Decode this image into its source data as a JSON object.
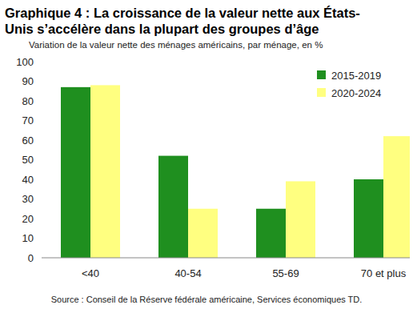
{
  "chart_data": {
    "type": "bar",
    "title": "Graphique 4 : La croissance de la valeur nette aux États-Unis s’accélère dans la plupart des groupes d’âge",
    "subtitle": "Variation de la valeur nette des ménages américains, par ménage, en %",
    "source": "Source : Conseil de la Réserve fédérale américaine, Services économiques TD.",
    "categories": [
      "<40",
      "40-54",
      "55-69",
      "70 et plus"
    ],
    "series": [
      {
        "name": "2015-2019",
        "color": "#1f8f1f",
        "values": [
          87,
          52,
          25,
          40
        ]
      },
      {
        "name": "2020-2024",
        "color": "#ffff80",
        "values": [
          88,
          25,
          39,
          62
        ]
      }
    ],
    "ylim": [
      0,
      100
    ],
    "yticks": [
      0,
      10,
      20,
      30,
      40,
      50,
      60,
      70,
      80,
      90,
      100
    ],
    "grid": false,
    "legend": "top-right"
  }
}
